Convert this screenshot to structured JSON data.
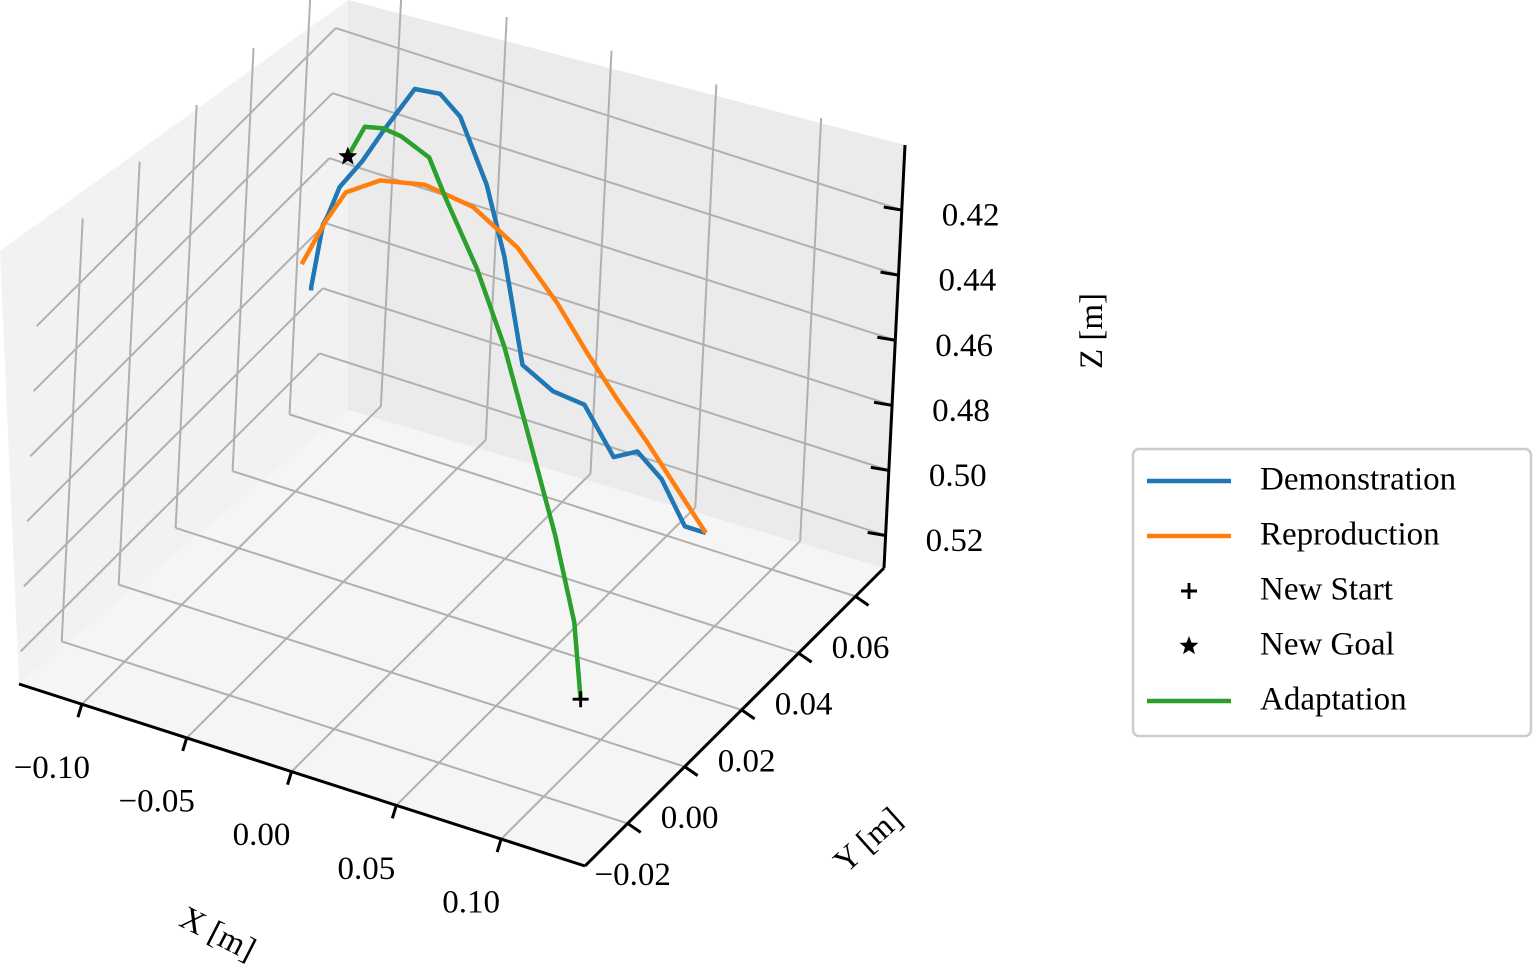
{
  "chart_data": {
    "type": "line",
    "projection": "3d",
    "grid": true,
    "legend_position": "right",
    "xlabel": "X [m]",
    "ylabel": "Y [m]",
    "zlabel": "Z [m]",
    "x_ticks": [
      "−0.10",
      "−0.05",
      "0.00",
      "0.05",
      "0.10"
    ],
    "y_ticks": [
      "−0.02",
      "0.00",
      "0.02",
      "0.04",
      "0.06"
    ],
    "z_ticks": [
      "0.42",
      "0.44",
      "0.46",
      "0.48",
      "0.50",
      "0.52"
    ],
    "xlim": [
      -0.13,
      0.14
    ],
    "ylim": [
      -0.035,
      0.07
    ],
    "zlim": [
      0.4,
      0.53
    ],
    "series": [
      {
        "name": "Demonstration",
        "color": "#1f77b4",
        "marker": "none",
        "points": [
          [
            0.1,
            0.035,
            0.497
          ],
          [
            0.09,
            0.035,
            0.497
          ],
          [
            0.078,
            0.035,
            0.485
          ],
          [
            0.066,
            0.035,
            0.479
          ],
          [
            0.055,
            0.035,
            0.483
          ],
          [
            0.04,
            0.035,
            0.47
          ],
          [
            0.025,
            0.035,
            0.469
          ],
          [
            0.01,
            0.035,
            0.464
          ],
          [
            -0.001,
            0.035,
            0.433
          ],
          [
            -0.011,
            0.035,
            0.413
          ],
          [
            -0.025,
            0.035,
            0.395
          ],
          [
            -0.035,
            0.035,
            0.39
          ],
          [
            -0.047,
            0.035,
            0.391
          ],
          [
            -0.061,
            0.035,
            0.407
          ],
          [
            -0.07,
            0.035,
            0.418
          ],
          [
            -0.08,
            0.035,
            0.428
          ],
          [
            -0.081,
            0.035,
            0.43
          ],
          [
            -0.085,
            0.035,
            0.438
          ],
          [
            -0.087,
            0.035,
            0.441
          ],
          [
            -0.091,
            0.035,
            0.461
          ],
          [
            -0.091,
            0.035,
            0.462
          ]
        ]
      },
      {
        "name": "Reproduction",
        "color": "#ff7f0e",
        "marker": "none",
        "points": [
          [
            0.1,
            0.035,
            0.497
          ],
          [
            0.085,
            0.035,
            0.486
          ],
          [
            0.07,
            0.035,
            0.475
          ],
          [
            0.055,
            0.035,
            0.465
          ],
          [
            0.04,
            0.035,
            0.454
          ],
          [
            0.025,
            0.035,
            0.442
          ],
          [
            0.005,
            0.035,
            0.429
          ],
          [
            -0.017,
            0.035,
            0.421
          ],
          [
            -0.04,
            0.035,
            0.419
          ],
          [
            -0.061,
            0.035,
            0.422
          ],
          [
            -0.077,
            0.035,
            0.429
          ],
          [
            -0.086,
            0.035,
            0.44
          ],
          [
            -0.096,
            0.035,
            0.455
          ]
        ]
      },
      {
        "name": "New Start",
        "color": "#000000",
        "marker": "plus",
        "points": [
          [
            0.115,
            -0.02,
            0.497
          ]
        ]
      },
      {
        "name": "New Goal",
        "color": "#000000",
        "marker": "star",
        "points": [
          [
            -0.115,
            0.065,
            0.452
          ]
        ]
      },
      {
        "name": "Adaptation",
        "color": "#2ca02c",
        "marker": "none",
        "points": [
          [
            -0.115,
            0.065,
            0.452
          ],
          [
            -0.105,
            0.06,
            0.441
          ],
          [
            -0.095,
            0.055,
            0.43
          ],
          [
            -0.08,
            0.05,
            0.423
          ],
          [
            -0.065,
            0.045,
            0.418
          ],
          [
            -0.045,
            0.04,
            0.416
          ],
          [
            -0.03,
            0.035,
            0.421
          ],
          [
            -0.005,
            0.028,
            0.431
          ],
          [
            0.02,
            0.02,
            0.443
          ],
          [
            0.045,
            0.012,
            0.461
          ],
          [
            0.07,
            0.003,
            0.476
          ],
          [
            0.095,
            -0.008,
            0.488
          ],
          [
            0.115,
            -0.02,
            0.497
          ]
        ]
      }
    ]
  }
}
